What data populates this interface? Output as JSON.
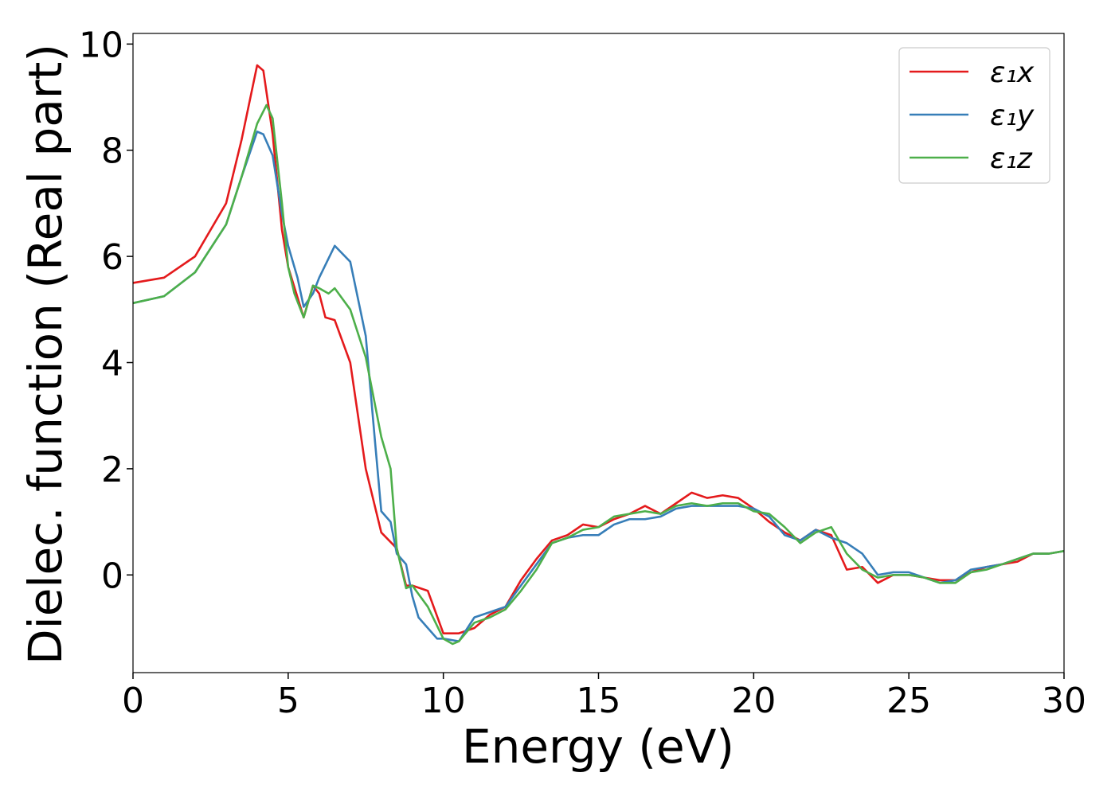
{
  "chart_data": {
    "type": "line",
    "xlabel": "Energy (eV)",
    "ylabel": "Dielec. function (Real part)",
    "xlim": [
      0,
      30
    ],
    "xticks": [
      0,
      5,
      10,
      15,
      20,
      25,
      30
    ],
    "ylim": [
      -1.84,
      10.2
    ],
    "yticks": [
      0,
      2,
      4,
      6,
      8,
      10
    ],
    "legend": "upper right",
    "series": [
      {
        "name": "ε₁x",
        "color": "#e41a1c",
        "x": [
          0,
          1,
          2,
          3,
          3.5,
          4,
          4.2,
          4.5,
          4.8,
          5,
          5.5,
          5.8,
          6,
          6.2,
          6.5,
          7,
          7.5,
          8,
          8.5,
          8.8,
          9,
          9.5,
          10,
          10.5,
          11,
          11.5,
          12,
          12.5,
          13,
          13.5,
          14,
          14.5,
          15,
          15.5,
          16,
          16.5,
          17,
          17.5,
          18,
          18.5,
          19,
          19.5,
          20,
          20.5,
          21,
          21.5,
          22,
          22.5,
          23,
          23.5,
          24,
          24.5,
          25,
          25.5,
          26,
          26.5,
          27,
          27.5,
          28,
          28.5,
          29,
          29.5,
          30
        ],
        "values": [
          5.5,
          5.6,
          6.0,
          7.0,
          8.2,
          9.6,
          9.5,
          8.3,
          6.5,
          5.8,
          4.85,
          5.45,
          5.3,
          4.85,
          4.8,
          4.0,
          2.0,
          0.8,
          0.5,
          -0.2,
          -0.2,
          -0.3,
          -1.1,
          -1.1,
          -1.0,
          -0.75,
          -0.6,
          -0.1,
          0.3,
          0.65,
          0.75,
          0.95,
          0.9,
          1.05,
          1.15,
          1.3,
          1.15,
          1.35,
          1.55,
          1.45,
          1.5,
          1.45,
          1.25,
          1.0,
          0.8,
          0.65,
          0.85,
          0.75,
          0.1,
          0.15,
          -0.15,
          0.0,
          0.0,
          -0.05,
          -0.1,
          -0.1,
          0.05,
          0.15,
          0.2,
          0.25,
          0.4,
          0.4,
          0.45
        ]
      },
      {
        "name": "ε₁y",
        "color": "#377eb8",
        "x": [
          0,
          1,
          2,
          3,
          3.5,
          4,
          4.2,
          4.5,
          4.8,
          5,
          5.3,
          5.5,
          5.8,
          6,
          6.5,
          7,
          7.5,
          7.8,
          8,
          8.3,
          8.5,
          8.8,
          9,
          9.2,
          9.5,
          9.8,
          10,
          10.5,
          11,
          11.5,
          12,
          12.5,
          13,
          13.5,
          14,
          14.5,
          15,
          15.5,
          16,
          16.5,
          17,
          17.5,
          18,
          18.5,
          19,
          19.5,
          20,
          20.5,
          21,
          21.5,
          22,
          22.5,
          23,
          23.5,
          24,
          24.5,
          25,
          25.5,
          26,
          26.5,
          27,
          27.5,
          28,
          28.5,
          29,
          29.5,
          30
        ],
        "values": [
          5.12,
          5.25,
          5.7,
          6.6,
          7.5,
          8.35,
          8.3,
          7.9,
          6.8,
          6.2,
          5.6,
          5.05,
          5.3,
          5.6,
          6.2,
          5.9,
          4.5,
          2.5,
          1.2,
          1.0,
          0.4,
          0.2,
          -0.4,
          -0.8,
          -1.0,
          -1.2,
          -1.2,
          -1.25,
          -0.8,
          -0.7,
          -0.6,
          -0.2,
          0.2,
          0.6,
          0.7,
          0.75,
          0.75,
          0.95,
          1.05,
          1.05,
          1.1,
          1.25,
          1.3,
          1.3,
          1.3,
          1.3,
          1.25,
          1.1,
          0.75,
          0.65,
          0.85,
          0.7,
          0.6,
          0.4,
          0.0,
          0.05,
          0.05,
          -0.05,
          -0.15,
          -0.1,
          0.1,
          0.15,
          0.2,
          0.3,
          0.4,
          0.4,
          0.45
        ]
      },
      {
        "name": "ε₁z",
        "color": "#4daf4a",
        "x": [
          0,
          1,
          2,
          3,
          3.5,
          4,
          4.3,
          4.5,
          4.8,
          5,
          5.2,
          5.5,
          5.8,
          6,
          6.3,
          6.5,
          7,
          7.5,
          8,
          8.3,
          8.5,
          8.8,
          9,
          9.5,
          10,
          10.3,
          10.5,
          11,
          11.5,
          12,
          12.5,
          13,
          13.5,
          14,
          14.5,
          15,
          15.5,
          16,
          16.5,
          17,
          17.5,
          18,
          18.5,
          19,
          19.5,
          20,
          20.5,
          21,
          21.5,
          22,
          22.5,
          23,
          23.5,
          24,
          24.5,
          25,
          25.5,
          26,
          26.5,
          27,
          27.5,
          28,
          28.5,
          29,
          29.5,
          30
        ],
        "values": [
          5.12,
          5.25,
          5.7,
          6.6,
          7.5,
          8.5,
          8.85,
          8.6,
          7.0,
          5.8,
          5.3,
          4.85,
          5.45,
          5.4,
          5.3,
          5.4,
          5.0,
          4.1,
          2.6,
          2.0,
          0.5,
          -0.25,
          -0.2,
          -0.6,
          -1.2,
          -1.3,
          -1.25,
          -0.9,
          -0.8,
          -0.65,
          -0.3,
          0.1,
          0.6,
          0.7,
          0.85,
          0.9,
          1.1,
          1.15,
          1.2,
          1.15,
          1.3,
          1.35,
          1.3,
          1.35,
          1.35,
          1.2,
          1.15,
          0.9,
          0.6,
          0.8,
          0.9,
          0.4,
          0.1,
          -0.05,
          0.0,
          0.0,
          -0.05,
          -0.15,
          -0.15,
          0.05,
          0.1,
          0.2,
          0.3,
          0.4,
          0.4,
          0.45
        ]
      }
    ]
  }
}
